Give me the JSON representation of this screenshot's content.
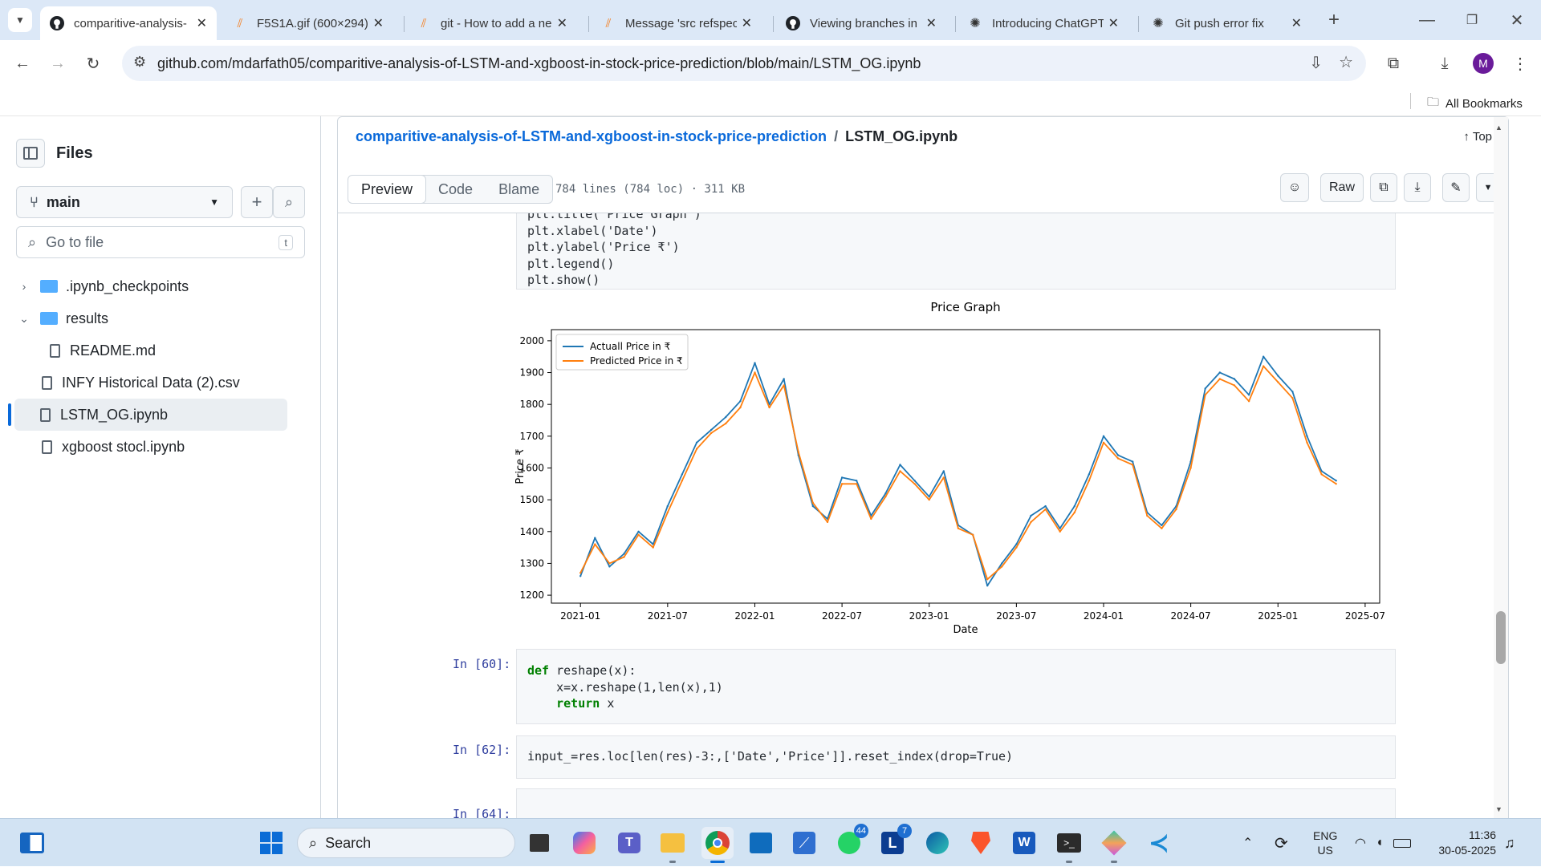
{
  "browser": {
    "tabs": [
      {
        "title": "comparitive-analysis-",
        "icon": "github-icon"
      },
      {
        "title": "F5S1A.gif (600×294)",
        "icon": "stackoverflow-icon"
      },
      {
        "title": "git - How to add a ne",
        "icon": "stackoverflow-icon"
      },
      {
        "title": "Message 'src refspec",
        "icon": "stackoverflow-icon"
      },
      {
        "title": "Viewing branches in",
        "icon": "github-icon"
      },
      {
        "title": "Introducing ChatGPT",
        "icon": "openai-icon"
      },
      {
        "title": "Git push error fix",
        "icon": "chatgpt-icon"
      }
    ],
    "url": "github.com/mdarfath05/comparitive-analysis-of-LSTM-and-xgboost-in-stock-price-prediction/blob/main/LSTM_OG.ipynb",
    "all_bookmarks": "All Bookmarks",
    "profile_initial": "M"
  },
  "sidebar": {
    "title": "Files",
    "branch": "main",
    "goto_placeholder": "Go to file",
    "goto_shortcut": "t",
    "tree": [
      {
        "label": ".ipynb_checkpoints",
        "type": "folder",
        "expanded": false
      },
      {
        "label": "results",
        "type": "folder",
        "expanded": true
      },
      {
        "label": "README.md",
        "type": "file",
        "indent": 1
      },
      {
        "label": "INFY Historical Data (2).csv",
        "type": "file"
      },
      {
        "label": "LSTM_OG.ipynb",
        "type": "file",
        "selected": true
      },
      {
        "label": "xgboost stocl.ipynb",
        "type": "file"
      }
    ]
  },
  "main": {
    "repo": "comparitive-analysis-of-LSTM-and-xgboost-in-stock-price-prediction",
    "sep": "/",
    "file": "LSTM_OG.ipynb",
    "top_link": "Top",
    "tabs": [
      "Preview",
      "Code",
      "Blame"
    ],
    "file_info": "784 lines (784 loc) · 311 KB",
    "raw_label": "Raw"
  },
  "notebook": {
    "cell1_lines": [
      "plt.title(\"Price Graph\")",
      "plt.xlabel('Date')",
      "plt.ylabel('Price ₹')",
      "plt.legend()",
      "plt.show()"
    ],
    "prompt2": "In [60]:",
    "cell2_lines": [
      "def reshape(x):",
      "    x=x.reshape(1,len(x),1)",
      "    return x"
    ],
    "prompt3": "In [62]:",
    "cell3_line": "input_=res.loc[len(res)-3:,['Date','Price']].reset_index(drop=True)",
    "prompt4": "In [64]:"
  },
  "chart_data": {
    "type": "line",
    "title": "Price Graph",
    "xlabel": "Date",
    "ylabel": "Price ₹",
    "x_ticks": [
      "2021-01",
      "2021-07",
      "2022-01",
      "2022-07",
      "2023-01",
      "2023-07",
      "2024-01",
      "2024-07",
      "2025-01",
      "2025-07"
    ],
    "y_ticks": [
      1200,
      1300,
      1400,
      1500,
      1600,
      1700,
      1800,
      1900,
      2000
    ],
    "ylim": [
      1175,
      2035
    ],
    "xlim": [
      "2020-11",
      "2025-08"
    ],
    "legend_position": "top-left",
    "grid": false,
    "x": [
      "2021-01",
      "2021-02",
      "2021-03",
      "2021-04",
      "2021-05",
      "2021-06",
      "2021-07",
      "2021-08",
      "2021-09",
      "2021-10",
      "2021-11",
      "2021-12",
      "2022-01",
      "2022-02",
      "2022-03",
      "2022-04",
      "2022-05",
      "2022-06",
      "2022-07",
      "2022-08",
      "2022-09",
      "2022-10",
      "2022-11",
      "2022-12",
      "2023-01",
      "2023-02",
      "2023-03",
      "2023-04",
      "2023-05",
      "2023-06",
      "2023-07",
      "2023-08",
      "2023-09",
      "2023-10",
      "2023-11",
      "2023-12",
      "2024-01",
      "2024-02",
      "2024-03",
      "2024-04",
      "2024-05",
      "2024-06",
      "2024-07",
      "2024-08",
      "2024-09",
      "2024-10",
      "2024-11",
      "2024-12",
      "2025-01",
      "2025-02",
      "2025-03",
      "2025-04",
      "2025-05"
    ],
    "series": [
      {
        "name": "Actuall Price in ₹",
        "color": "#1f77b4",
        "values": [
          1260,
          1380,
          1290,
          1330,
          1400,
          1360,
          1480,
          1580,
          1680,
          1720,
          1760,
          1810,
          1930,
          1800,
          1880,
          1640,
          1480,
          1440,
          1570,
          1560,
          1450,
          1520,
          1610,
          1560,
          1510,
          1590,
          1420,
          1390,
          1230,
          1300,
          1360,
          1450,
          1480,
          1410,
          1480,
          1580,
          1700,
          1640,
          1620,
          1460,
          1420,
          1480,
          1620,
          1850,
          1900,
          1880,
          1830,
          1950,
          1890,
          1840,
          1700,
          1590,
          1560
        ]
      },
      {
        "name": "Predicted Price in ₹",
        "color": "#ff7f0e",
        "values": [
          1270,
          1360,
          1300,
          1320,
          1390,
          1350,
          1460,
          1560,
          1660,
          1710,
          1740,
          1790,
          1900,
          1790,
          1860,
          1650,
          1490,
          1430,
          1550,
          1550,
          1440,
          1510,
          1590,
          1550,
          1500,
          1570,
          1410,
          1390,
          1250,
          1290,
          1350,
          1430,
          1470,
          1400,
          1460,
          1560,
          1680,
          1630,
          1610,
          1450,
          1410,
          1470,
          1600,
          1830,
          1880,
          1860,
          1810,
          1920,
          1870,
          1820,
          1680,
          1580,
          1550
        ]
      }
    ]
  },
  "taskbar": {
    "search_placeholder": "Search",
    "whatsapp_badge": "44",
    "lexi_badge": "7",
    "lang1": "ENG",
    "lang2": "US",
    "time": "11:36",
    "date": "30-05-2025"
  }
}
